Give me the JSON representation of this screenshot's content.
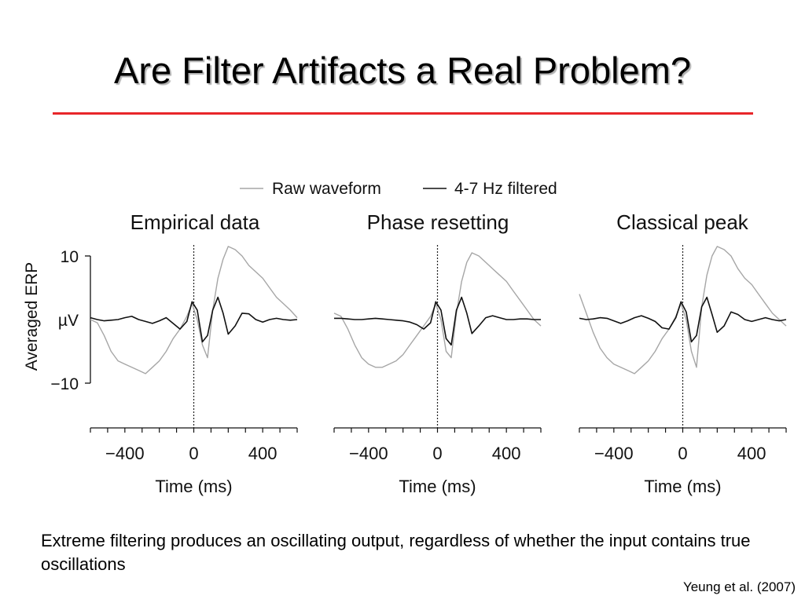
{
  "slide": {
    "title": "Are Filter Artifacts a Real Problem?",
    "caption": "Extreme filtering produces an oscillating output, regardless of whether the input contains true oscillations",
    "citation": "Yeung et al. (2007)",
    "accent_color": "#e8262a"
  },
  "legend": {
    "placement": "top-center",
    "items": [
      {
        "label": "Raw waveform",
        "color": "#a6a6a6"
      },
      {
        "label": "4-7 Hz filtered",
        "color": "#111111"
      }
    ]
  },
  "y_axis": {
    "label": "Averaged ERP",
    "unit": "µV",
    "ticks": [
      {
        "value": 10,
        "label": "10"
      },
      {
        "value": -10,
        "label": "−10"
      }
    ],
    "ylim": [
      -10,
      10
    ]
  },
  "chart_data": [
    {
      "type": "line",
      "title": "Empirical data",
      "xlabel": "Time (ms)",
      "xlim": [
        -600,
        600
      ],
      "ylim": [
        -10,
        10
      ],
      "xticks": [
        {
          "value": -400,
          "label": "−400"
        },
        {
          "value": 0,
          "label": "0"
        },
        {
          "value": 400,
          "label": "400"
        }
      ],
      "event_line": 0,
      "series": [
        {
          "name": "Raw waveform",
          "color": "#a6a6a6",
          "x": [
            -600,
            -560,
            -520,
            -480,
            -440,
            -400,
            -360,
            -320,
            -280,
            -240,
            -200,
            -160,
            -120,
            -80,
            -40,
            -10,
            20,
            50,
            80,
            110,
            140,
            170,
            200,
            240,
            280,
            320,
            360,
            400,
            440,
            480,
            520,
            560,
            600
          ],
          "y": [
            0,
            -0.5,
            -2.5,
            -5,
            -6.5,
            -7,
            -7.5,
            -8,
            -8.5,
            -7.5,
            -6.5,
            -5,
            -3,
            -1.5,
            0.5,
            2.5,
            0,
            -4,
            -6,
            1.5,
            6.5,
            9.5,
            11.5,
            11,
            10,
            8.5,
            7.5,
            6.5,
            5,
            3.5,
            2.5,
            1.5,
            0.3
          ]
        },
        {
          "name": "4-7 Hz filtered",
          "color": "#111111",
          "x": [
            -600,
            -560,
            -520,
            -480,
            -440,
            -400,
            -360,
            -320,
            -280,
            -240,
            -200,
            -160,
            -120,
            -80,
            -40,
            -10,
            20,
            50,
            80,
            110,
            140,
            170,
            200,
            240,
            280,
            320,
            360,
            400,
            440,
            480,
            520,
            560,
            600
          ],
          "y": [
            0.3,
            0,
            -0.2,
            -0.1,
            0,
            0.3,
            0.5,
            0,
            -0.3,
            -0.6,
            -0.2,
            0.3,
            -0.6,
            -1.5,
            -0.3,
            2.8,
            1.5,
            -3.5,
            -2.5,
            1.5,
            3.5,
            1,
            -2.3,
            -1,
            1,
            0.9,
            0,
            -0.4,
            0,
            0.2,
            0,
            -0.1,
            0
          ]
        }
      ]
    },
    {
      "type": "line",
      "title": "Phase resetting",
      "xlabel": "Time (ms)",
      "xlim": [
        -600,
        600
      ],
      "ylim": [
        -10,
        10
      ],
      "xticks": [
        {
          "value": -400,
          "label": "−400"
        },
        {
          "value": 0,
          "label": "0"
        },
        {
          "value": 400,
          "label": "400"
        }
      ],
      "event_line": 0,
      "series": [
        {
          "name": "Raw waveform",
          "color": "#a6a6a6",
          "x": [
            -600,
            -560,
            -520,
            -480,
            -440,
            -400,
            -360,
            -320,
            -280,
            -240,
            -200,
            -160,
            -120,
            -80,
            -40,
            -10,
            20,
            50,
            80,
            110,
            140,
            170,
            200,
            240,
            280,
            320,
            360,
            400,
            440,
            480,
            520,
            560,
            600
          ],
          "y": [
            1,
            0.5,
            -1.5,
            -4,
            -6,
            -7,
            -7.5,
            -7.5,
            -7,
            -6.5,
            -5.5,
            -4,
            -2.5,
            -1,
            0.5,
            2.5,
            0,
            -5,
            -6,
            1,
            6,
            9,
            10.5,
            10,
            9,
            8,
            7,
            6,
            4.5,
            3,
            1.5,
            0,
            -1
          ]
        },
        {
          "name": "4-7 Hz filtered",
          "color": "#111111",
          "x": [
            -600,
            -560,
            -520,
            -480,
            -440,
            -400,
            -360,
            -320,
            -280,
            -240,
            -200,
            -160,
            -120,
            -80,
            -40,
            -10,
            20,
            50,
            80,
            110,
            140,
            170,
            200,
            240,
            280,
            320,
            360,
            400,
            440,
            480,
            520,
            560,
            600
          ],
          "y": [
            0.2,
            0.2,
            0.1,
            0,
            0,
            0.1,
            0.2,
            0.1,
            0,
            -0.1,
            -0.2,
            -0.4,
            -0.8,
            -1.5,
            -0.5,
            2.8,
            1.5,
            -3,
            -4,
            1.5,
            3.5,
            1,
            -2.2,
            -1,
            0.3,
            0.6,
            0.3,
            0,
            0,
            0.1,
            0.1,
            0,
            0
          ]
        }
      ]
    },
    {
      "type": "line",
      "title": "Classical peak",
      "xlabel": "Time (ms)",
      "xlim": [
        -600,
        600
      ],
      "ylim": [
        -10,
        10
      ],
      "xticks": [
        {
          "value": -400,
          "label": "−400"
        },
        {
          "value": 0,
          "label": "0"
        },
        {
          "value": 400,
          "label": "400"
        }
      ],
      "event_line": 0,
      "series": [
        {
          "name": "Raw waveform",
          "color": "#a6a6a6",
          "x": [
            -600,
            -560,
            -520,
            -480,
            -440,
            -400,
            -360,
            -320,
            -280,
            -240,
            -200,
            -160,
            -120,
            -80,
            -40,
            -10,
            20,
            50,
            80,
            110,
            140,
            170,
            200,
            240,
            280,
            320,
            360,
            400,
            440,
            480,
            520,
            560,
            600
          ],
          "y": [
            4,
            1,
            -2,
            -4.5,
            -6,
            -7,
            -7.5,
            -8,
            -8.5,
            -7.5,
            -6.5,
            -5,
            -3,
            -1.5,
            0.5,
            2.5,
            0,
            -5,
            -7.5,
            2,
            7,
            10,
            11.5,
            11,
            10,
            8,
            6.5,
            5.5,
            4,
            2.5,
            1,
            0,
            -1
          ]
        },
        {
          "name": "4-7 Hz filtered",
          "color": "#111111",
          "x": [
            -600,
            -560,
            -520,
            -480,
            -440,
            -400,
            -360,
            -320,
            -280,
            -240,
            -200,
            -160,
            -120,
            -80,
            -40,
            -10,
            20,
            50,
            80,
            110,
            140,
            170,
            200,
            240,
            280,
            320,
            360,
            400,
            440,
            480,
            520,
            560,
            600
          ],
          "y": [
            0.2,
            0,
            0.1,
            0.3,
            0.2,
            -0.2,
            -0.6,
            -0.2,
            0.3,
            0.6,
            0.2,
            -0.3,
            -1.3,
            -1.5,
            0.3,
            2.8,
            1.2,
            -3.5,
            -2.5,
            2,
            3.5,
            0.8,
            -2,
            -1,
            1.2,
            0.8,
            0,
            -0.3,
            0,
            0.3,
            0,
            -0.2,
            0
          ]
        }
      ]
    }
  ]
}
